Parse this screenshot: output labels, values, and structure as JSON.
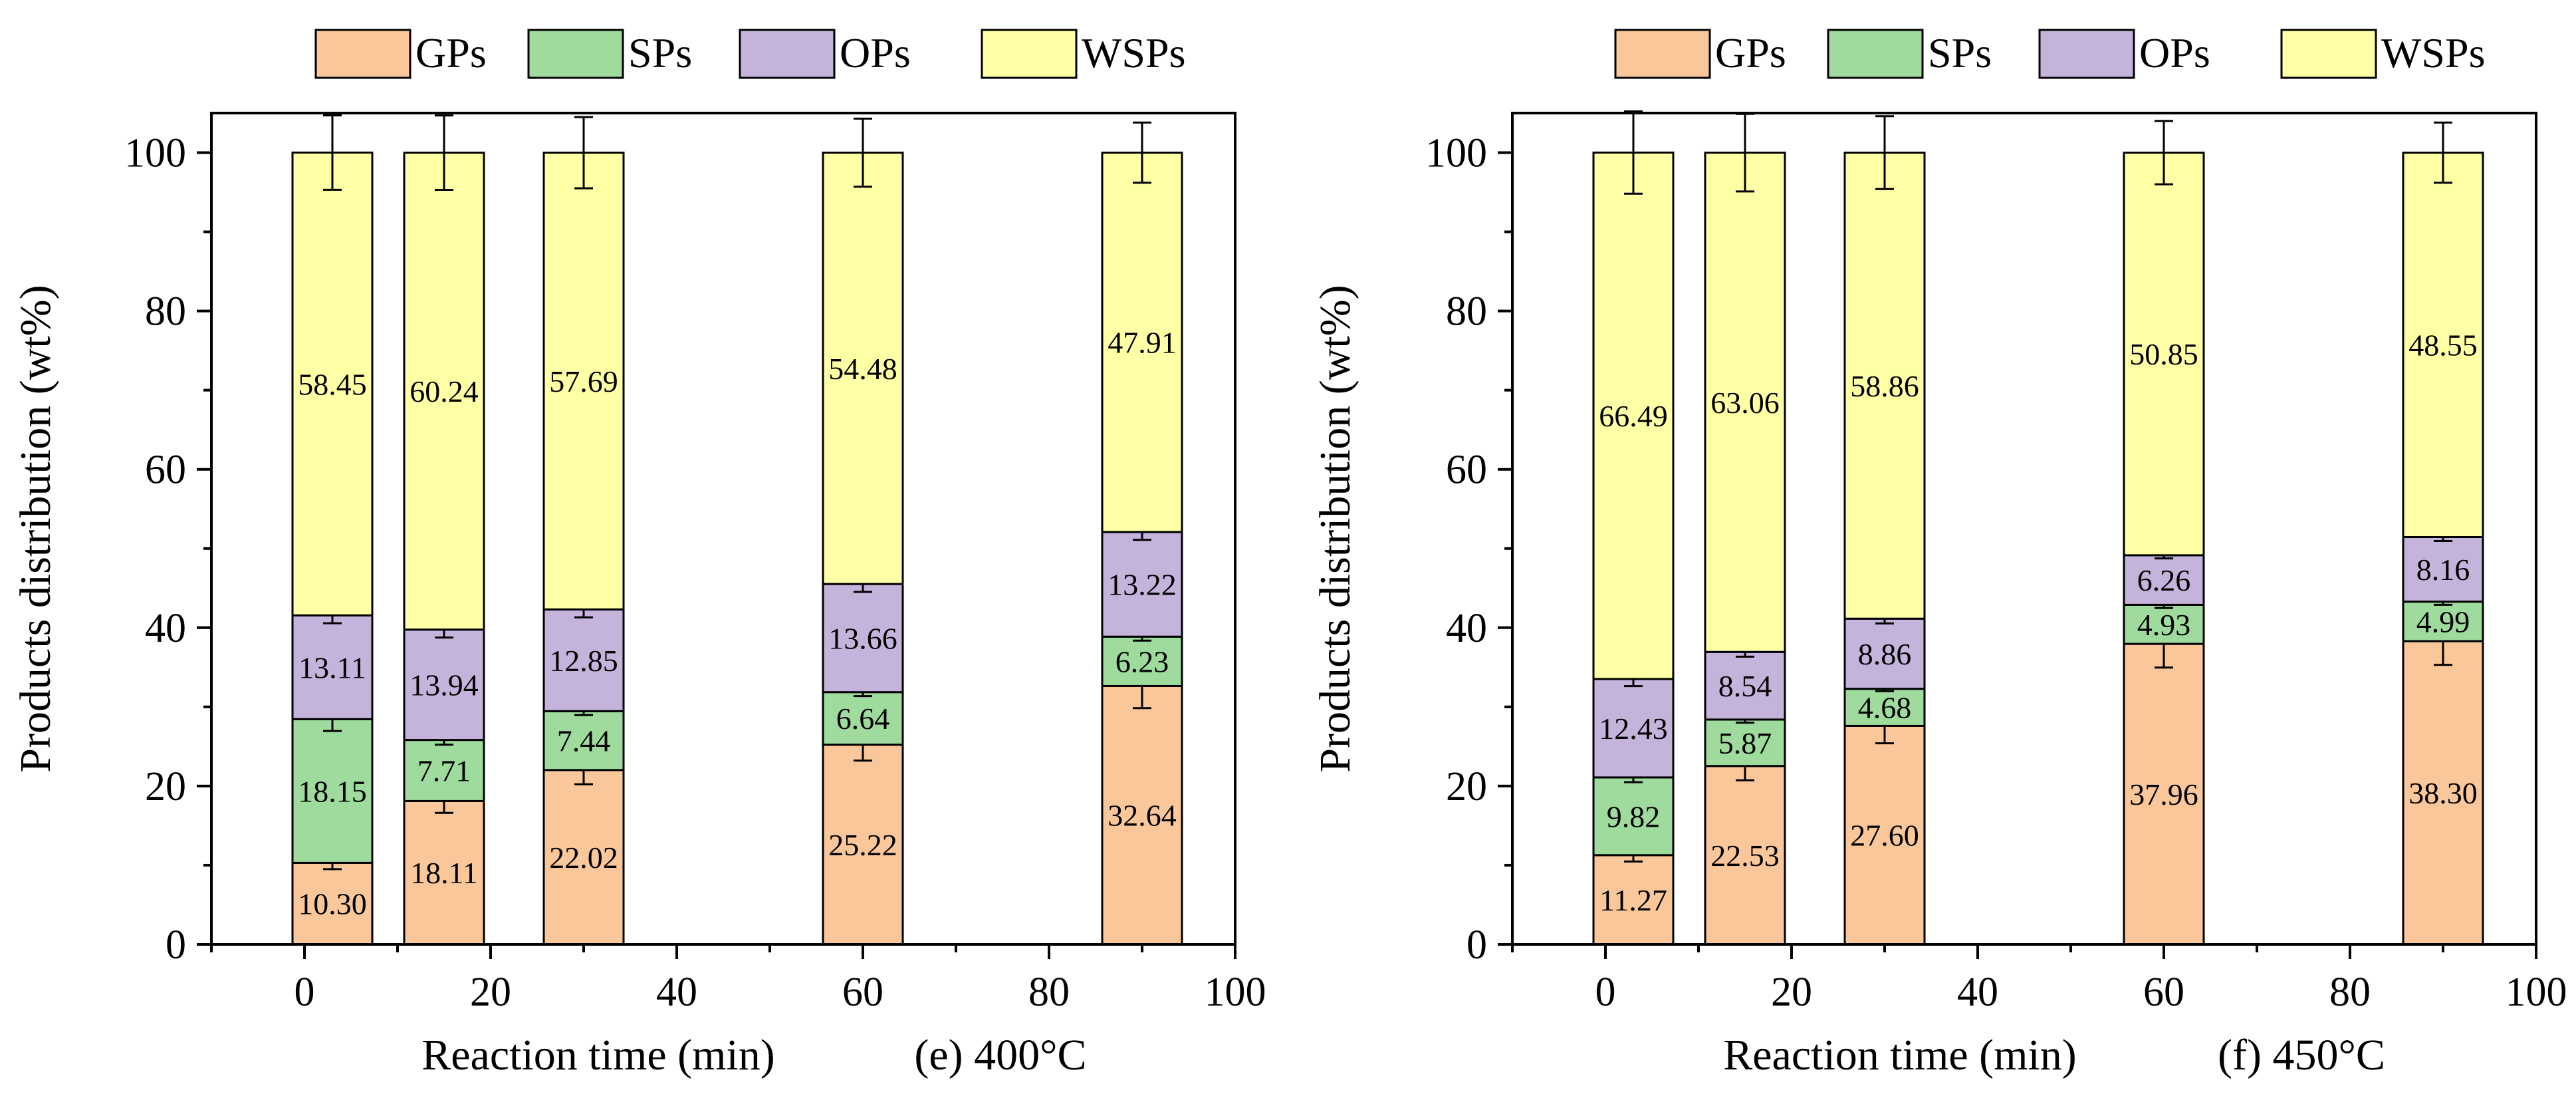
{
  "legend": [
    {
      "key": "GPs",
      "label": "GPs",
      "color": "#f9c79a"
    },
    {
      "key": "SPs",
      "label": "SPs",
      "color": "#9edb9d"
    },
    {
      "key": "OPs",
      "label": "OPs",
      "color": "#c4b4dc"
    },
    {
      "key": "WSPs",
      "label": "WSPs",
      "color": "#ffffa6"
    }
  ],
  "chart_data": [
    {
      "type": "bar",
      "stacked": true,
      "caption": "(e) 400°C",
      "xlabel": "Reaction time (min)",
      "ylabel": "Products distribution (wt%)",
      "xlim": [
        -10,
        100
      ],
      "ylim": [
        0,
        105
      ],
      "xticks": [
        0,
        20,
        40,
        60,
        80,
        100
      ],
      "yticks": [
        0,
        20,
        40,
        60,
        80,
        100
      ],
      "x": [
        3,
        15,
        30,
        60,
        90
      ],
      "series": [
        {
          "name": "GPs",
          "values": [
            10.3,
            18.11,
            22.02,
            25.22,
            32.64
          ],
          "labels": [
            "10.30",
            "18.11",
            "22.02",
            "25.22",
            "32.64"
          ],
          "errors": [
            0.8,
            1.5,
            1.8,
            2.0,
            2.8
          ]
        },
        {
          "name": "SPs",
          "values": [
            18.15,
            7.71,
            7.44,
            6.64,
            6.23
          ],
          "labels": [
            "18.15",
            "7.71",
            "7.44",
            "6.64",
            "6.23"
          ],
          "errors": [
            1.5,
            0.6,
            0.5,
            0.5,
            0.5
          ]
        },
        {
          "name": "OPs",
          "values": [
            13.11,
            13.94,
            12.85,
            13.66,
            13.22
          ],
          "labels": [
            "13.11",
            "13.94",
            "12.85",
            "13.66",
            "13.22"
          ],
          "errors": [
            1.0,
            1.0,
            1.0,
            1.0,
            1.0
          ]
        },
        {
          "name": "WSPs",
          "values": [
            58.45,
            60.24,
            57.69,
            54.48,
            47.91
          ],
          "labels": [
            "58.45",
            "60.24",
            "57.69",
            "54.48",
            "47.91"
          ],
          "errors": [
            4.7,
            4.7,
            4.5,
            4.3,
            3.8
          ]
        }
      ]
    },
    {
      "type": "bar",
      "stacked": true,
      "caption": "(f) 450°C",
      "xlabel": "Reaction time (min)",
      "ylabel": "Products distribution (wt%)",
      "xlim": [
        -10,
        100
      ],
      "ylim": [
        0,
        105
      ],
      "xticks": [
        0,
        20,
        40,
        60,
        80,
        100
      ],
      "yticks": [
        0,
        20,
        40,
        60,
        80,
        100
      ],
      "x": [
        3,
        15,
        30,
        60,
        90
      ],
      "series": [
        {
          "name": "GPs",
          "values": [
            11.27,
            22.53,
            27.6,
            37.96,
            38.3
          ],
          "labels": [
            "11.27",
            "22.53",
            "27.60",
            "37.96",
            "38.30"
          ],
          "errors": [
            0.8,
            1.8,
            2.2,
            3.0,
            3.0
          ]
        },
        {
          "name": "SPs",
          "values": [
            9.82,
            5.87,
            4.68,
            4.93,
            4.99
          ],
          "labels": [
            "9.82",
            "5.87",
            "4.68",
            "4.93",
            "4.99"
          ],
          "errors": [
            0.6,
            0.4,
            0.3,
            0.4,
            0.4
          ]
        },
        {
          "name": "OPs",
          "values": [
            12.43,
            8.54,
            8.86,
            6.26,
            8.16
          ],
          "labels": [
            "12.43",
            "8.54",
            "8.86",
            "6.26",
            "8.16"
          ],
          "errors": [
            0.9,
            0.6,
            0.6,
            0.4,
            0.5
          ]
        },
        {
          "name": "WSPs",
          "values": [
            66.49,
            63.06,
            58.86,
            50.85,
            48.55
          ],
          "labels": [
            "66.49",
            "63.06",
            "58.86",
            "50.85",
            "48.55"
          ],
          "errors": [
            5.2,
            4.9,
            4.6,
            4.0,
            3.8
          ]
        }
      ]
    }
  ]
}
